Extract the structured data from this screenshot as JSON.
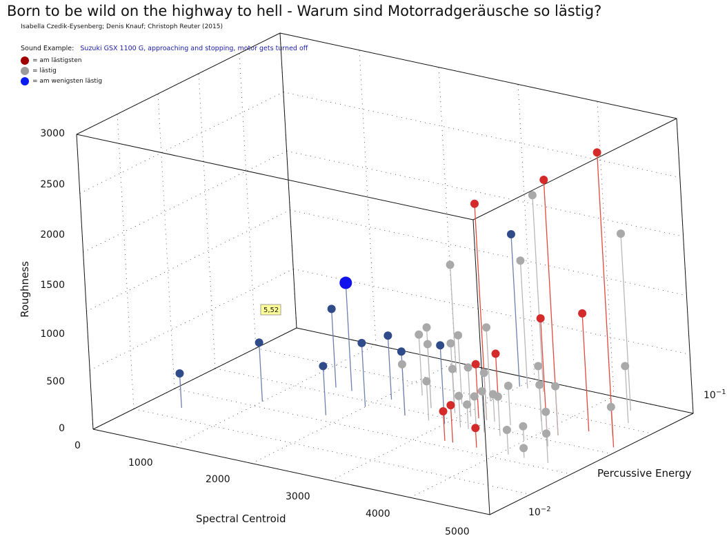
{
  "header": {
    "title": "Born to be wild on the highway to hell - Warum sind Motorradgeräusche so lästig?",
    "authors": "Isabella Czedik-Eysenberg; Denis Knauf; Christoph Reuter (2015)",
    "sound_label": "Sound Example:",
    "sound_link": "Suzuki GSX 1100 G, approaching and stopping, motor gets turned off"
  },
  "legend": [
    {
      "label": "= am lästigsten",
      "color": "#a00000"
    },
    {
      "label": "= lästig",
      "color": "#9c9c9c"
    },
    {
      "label": "= am wenigsten lästig",
      "color": "#0a1cf0"
    }
  ],
  "colors": {
    "most": "#d42a2a",
    "most_line": "#e0493c",
    "mid": "#a9a9a9",
    "mid_line": "#b7b7b7",
    "least": "#2f4b8a",
    "least_line": "#6d7fae",
    "highlight": "#1111ee"
  },
  "chart_data": {
    "type": "scatter",
    "title": "",
    "axes": {
      "x": {
        "label": "Spectral Centroid",
        "range": [
          0,
          5000
        ],
        "ticks": [
          "0",
          "1000",
          "2000",
          "3000",
          "4000",
          "5000"
        ]
      },
      "y": {
        "label": "Percussive Energy",
        "scale": "log",
        "ticks": [
          "10^-2",
          "10^-1"
        ]
      },
      "z": {
        "label": "Roughness",
        "range": [
          0,
          3000
        ],
        "ticks": [
          "0",
          "500",
          "1000",
          "1500",
          "2000",
          "2500",
          "3000"
        ]
      }
    },
    "grid": true,
    "tooltip": {
      "text": "5,52"
    },
    "series": [
      {
        "name": "am lästigsten",
        "key": "most",
        "points": [
          {
            "x": 4900,
            "y": 0.05,
            "z": 3000
          },
          {
            "x": 4200,
            "y": 0.05,
            "z": 2600
          },
          {
            "x": 4400,
            "y": 0.06,
            "z": 1200
          },
          {
            "x": 4300,
            "y": 0.04,
            "z": 1300
          },
          {
            "x": 3300,
            "y": 0.05,
            "z": 2200
          },
          {
            "x": 3100,
            "y": 0.07,
            "z": 500
          },
          {
            "x": 3200,
            "y": 0.05,
            "z": 550
          },
          {
            "x": 3400,
            "y": 0.03,
            "z": 380
          },
          {
            "x": 3300,
            "y": 0.03,
            "z": 300
          },
          {
            "x": 3700,
            "y": 0.03,
            "z": 200
          }
        ]
      },
      {
        "name": "lästig",
        "key": "mid",
        "points": [
          {
            "x": 3300,
            "y": 0.1,
            "z": 2000
          },
          {
            "x": 4400,
            "y": 0.1,
            "z": 1800
          },
          {
            "x": 3100,
            "y": 0.1,
            "z": 1300
          },
          {
            "x": 2200,
            "y": 0.1,
            "z": 1100
          },
          {
            "x": 2600,
            "y": 0.05,
            "z": 820
          },
          {
            "x": 2800,
            "y": 0.06,
            "z": 700
          },
          {
            "x": 3000,
            "y": 0.07,
            "z": 750
          },
          {
            "x": 2700,
            "y": 0.06,
            "z": 600
          },
          {
            "x": 2600,
            "y": 0.05,
            "z": 650
          },
          {
            "x": 2900,
            "y": 0.05,
            "z": 450
          },
          {
            "x": 3100,
            "y": 0.05,
            "z": 500
          },
          {
            "x": 3300,
            "y": 0.05,
            "z": 480
          },
          {
            "x": 3500,
            "y": 0.04,
            "z": 420
          },
          {
            "x": 3700,
            "y": 0.04,
            "z": 400
          },
          {
            "x": 3400,
            "y": 0.04,
            "z": 350
          },
          {
            "x": 3200,
            "y": 0.04,
            "z": 320
          },
          {
            "x": 3800,
            "y": 0.06,
            "z": 560
          },
          {
            "x": 4000,
            "y": 0.05,
            "z": 480
          },
          {
            "x": 4200,
            "y": 0.05,
            "z": 500
          },
          {
            "x": 4600,
            "y": 0.08,
            "z": 580
          },
          {
            "x": 4100,
            "y": 0.03,
            "z": 250
          },
          {
            "x": 4300,
            "y": 0.04,
            "z": 350
          },
          {
            "x": 4600,
            "y": 0.03,
            "z": 300
          },
          {
            "x": 4700,
            "y": 0.06,
            "z": 300
          },
          {
            "x": 2800,
            "y": 0.04,
            "z": 400
          },
          {
            "x": 2500,
            "y": 0.04,
            "z": 520
          },
          {
            "x": 2300,
            "y": 0.06,
            "z": 620
          },
          {
            "x": 3600,
            "y": 0.05,
            "z": 400
          },
          {
            "x": 3400,
            "y": 0.05,
            "z": 280
          },
          {
            "x": 4000,
            "y": 0.04,
            "z": 150
          },
          {
            "x": 4300,
            "y": 0.03,
            "z": 100
          },
          {
            "x": 3300,
            "y": 0.04,
            "z": 250
          }
        ]
      },
      {
        "name": "am wenigsten lästig",
        "key": "least",
        "points": [
          {
            "x": 400,
            "y": 0.02,
            "z": 350
          },
          {
            "x": 1000,
            "y": 0.03,
            "z": 600
          },
          {
            "x": 1400,
            "y": 0.05,
            "z": 800
          },
          {
            "x": 1600,
            "y": 0.05,
            "z": 1100,
            "highlight": true
          },
          {
            "x": 1800,
            "y": 0.03,
            "z": 500
          },
          {
            "x": 2000,
            "y": 0.04,
            "z": 650
          },
          {
            "x": 2100,
            "y": 0.05,
            "z": 650
          },
          {
            "x": 2500,
            "y": 0.04,
            "z": 650
          },
          {
            "x": 3000,
            "y": 0.1,
            "z": 1550
          },
          {
            "x": 3000,
            "y": 0.04,
            "z": 800
          }
        ]
      }
    ]
  }
}
